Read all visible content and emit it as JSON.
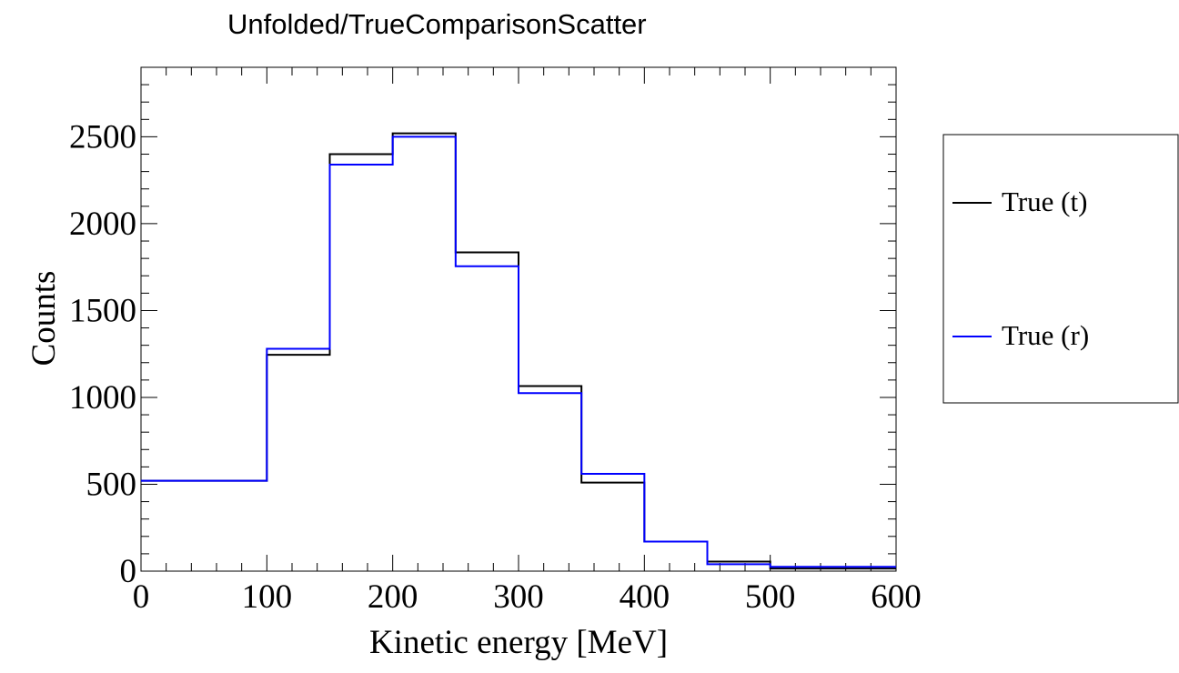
{
  "chart_data": {
    "type": "line",
    "title": "Unfolded/TrueComparisonScatter",
    "xlabel": "Kinetic energy [MeV]",
    "ylabel": "Counts",
    "xlim": [
      0,
      600
    ],
    "ylim": [
      0,
      2900
    ],
    "x_ticks": [
      "0",
      "100",
      "200",
      "300",
      "400",
      "500",
      "600"
    ],
    "y_ticks": [
      "0",
      "500",
      "1000",
      "1500",
      "2000",
      "2500"
    ],
    "bin_edges": [
      0,
      100,
      150,
      200,
      250,
      300,
      350,
      400,
      450,
      500,
      600
    ],
    "grid": false,
    "legend_position": "right",
    "series": [
      {
        "name": "True (t)",
        "color": "#000000",
        "values": [
          520,
          1245,
          2400,
          2520,
          1835,
          1065,
          510,
          170,
          55,
          15
        ]
      },
      {
        "name": "True (r)",
        "color": "#0000ff",
        "values": [
          520,
          1280,
          2340,
          2500,
          1755,
          1025,
          560,
          170,
          40,
          25
        ]
      }
    ]
  }
}
